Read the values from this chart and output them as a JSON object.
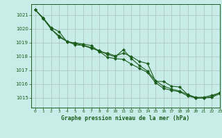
{
  "title": "Graphe pression niveau de la mer (hPa)",
  "background_color": "#c8ece8",
  "grid_color": "#b0c8c8",
  "line_color": "#1a5c1a",
  "marker_color": "#1a5c1a",
  "xlim": [
    -0.5,
    23
  ],
  "ylim": [
    1014.3,
    1021.8
  ],
  "yticks": [
    1015,
    1016,
    1017,
    1018,
    1019,
    1020,
    1021
  ],
  "xticks": [
    0,
    1,
    2,
    3,
    4,
    5,
    6,
    7,
    8,
    9,
    10,
    11,
    12,
    13,
    14,
    15,
    16,
    17,
    18,
    19,
    20,
    21,
    22,
    23
  ],
  "series1_x": [
    0,
    1,
    2,
    3,
    4,
    5,
    6,
    7,
    8,
    9,
    10,
    11,
    12,
    13,
    14,
    15,
    16,
    17,
    18,
    19,
    20,
    21,
    22,
    23
  ],
  "series1_y": [
    1021.4,
    1020.8,
    1020.1,
    1019.8,
    1019.05,
    1019.0,
    1018.9,
    1018.8,
    1018.35,
    1018.25,
    1018.05,
    1018.25,
    1018.0,
    1017.65,
    1017.5,
    1016.2,
    1016.2,
    1015.85,
    1015.8,
    1015.25,
    1015.05,
    1015.05,
    1015.2,
    1015.35
  ],
  "series2_x": [
    0,
    1,
    2,
    3,
    4,
    5,
    6,
    7,
    8,
    9,
    10,
    11,
    12,
    13,
    14,
    15,
    16,
    17,
    18,
    19,
    20,
    21,
    22,
    23
  ],
  "series2_y": [
    1021.4,
    1020.75,
    1020.0,
    1019.4,
    1019.1,
    1018.95,
    1018.8,
    1018.6,
    1018.45,
    1018.15,
    1018.0,
    1018.5,
    1017.85,
    1017.35,
    1016.95,
    1016.25,
    1015.85,
    1015.65,
    1015.5,
    1015.25,
    1015.0,
    1015.0,
    1015.1,
    1015.4
  ],
  "series3_x": [
    0,
    1,
    2,
    3,
    4,
    5,
    6,
    7,
    8,
    9,
    10,
    11,
    12,
    13,
    14,
    15,
    16,
    17,
    18,
    19,
    20,
    21,
    22,
    23
  ],
  "series3_y": [
    1021.4,
    1020.8,
    1020.0,
    1019.5,
    1019.1,
    1018.85,
    1018.82,
    1018.65,
    1018.38,
    1017.95,
    1017.85,
    1017.8,
    1017.45,
    1017.15,
    1016.85,
    1016.1,
    1015.7,
    1015.55,
    1015.45,
    1015.15,
    1015.0,
    1015.0,
    1015.05,
    1015.3
  ]
}
